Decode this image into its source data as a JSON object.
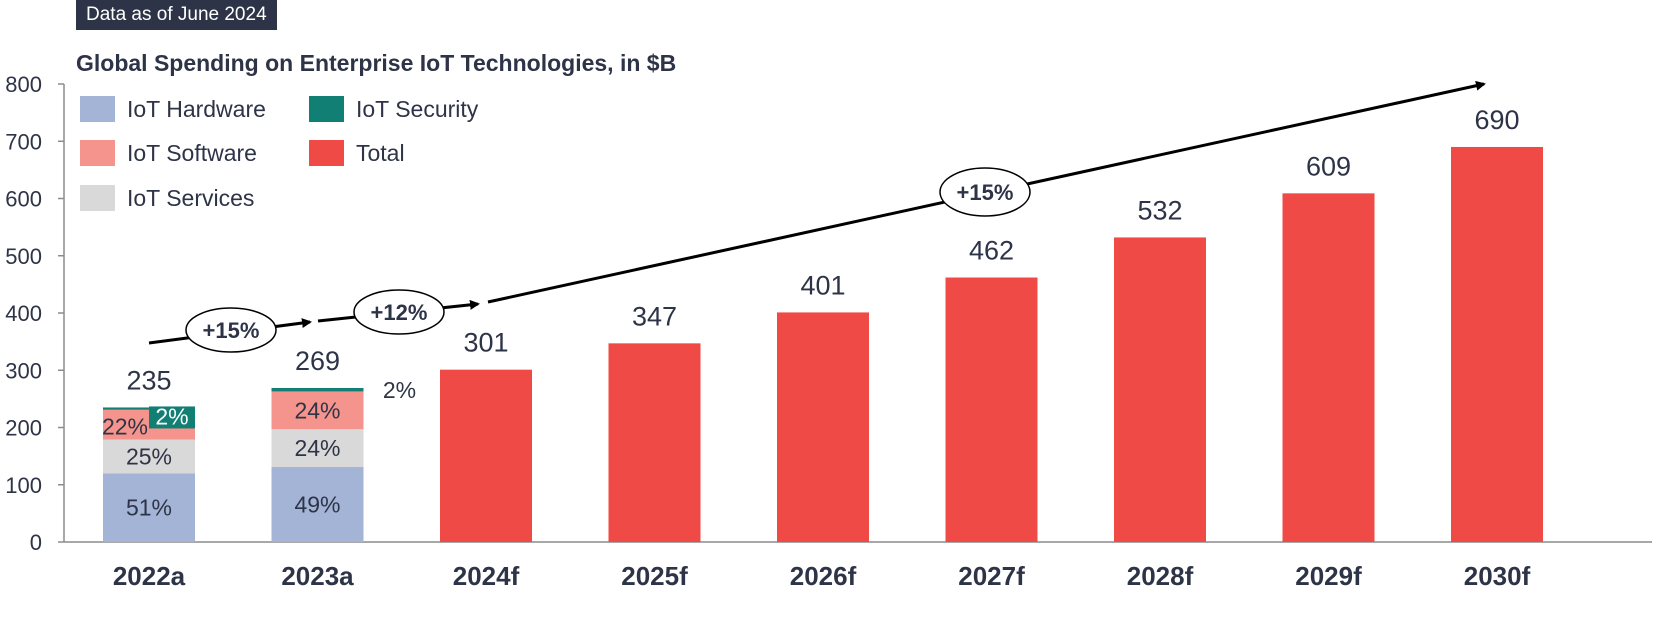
{
  "header": {
    "badge": "Data as of June 2024",
    "title": "Global Spending on Enterprise IoT Technologies, in $B"
  },
  "colors": {
    "hardware": "#a3b4d6",
    "software": "#f4948c",
    "services": "#d9d9d9",
    "security": "#117f74",
    "total": "#ef4a46",
    "text": "#2e3447",
    "badge_bg": "#2e3447"
  },
  "chart_data": {
    "type": "bar",
    "title": "Global Spending on Enterprise IoT Technologies, in $B",
    "ylim": [
      0,
      800
    ],
    "yticks": [
      "0",
      "100",
      "200",
      "300",
      "400",
      "500",
      "600",
      "700",
      "800"
    ],
    "categories": [
      "2022a",
      "2023a",
      "2024f",
      "2025f",
      "2026f",
      "2027f",
      "2028f",
      "2029f",
      "2030f"
    ],
    "legend": [
      {
        "key": "hardware",
        "label": "IoT Hardware"
      },
      {
        "key": "security",
        "label": "IoT Security"
      },
      {
        "key": "software",
        "label": "IoT Software"
      },
      {
        "key": "total",
        "label": "Total"
      },
      {
        "key": "services",
        "label": "IoT Services"
      }
    ],
    "stacked": [
      {
        "category": "2022a",
        "total": 235,
        "total_label": "235",
        "segments": [
          {
            "key": "hardware",
            "value": 120,
            "label": "51%"
          },
          {
            "key": "services",
            "value": 59,
            "label": "25%"
          },
          {
            "key": "software",
            "value": 52,
            "label": "22%"
          },
          {
            "key": "security",
            "value": 4,
            "label": "2%"
          }
        ]
      },
      {
        "category": "2023a",
        "total": 269,
        "total_label": "269",
        "segments": [
          {
            "key": "hardware",
            "value": 131,
            "label": "49%"
          },
          {
            "key": "services",
            "value": 66,
            "label": "24%"
          },
          {
            "key": "software",
            "value": 66,
            "label": "24%"
          },
          {
            "key": "security",
            "value": 6,
            "label": "2%"
          }
        ]
      }
    ],
    "totals": [
      {
        "category": "2024f",
        "value": 301,
        "label": "301"
      },
      {
        "category": "2025f",
        "value": 347,
        "label": "347"
      },
      {
        "category": "2026f",
        "value": 401,
        "label": "401"
      },
      {
        "category": "2027f",
        "value": 462,
        "label": "462"
      },
      {
        "category": "2028f",
        "value": 532,
        "label": "532"
      },
      {
        "category": "2029f",
        "value": 609,
        "label": "609"
      },
      {
        "category": "2030f",
        "value": 690,
        "label": "690"
      }
    ],
    "growth_annotations": [
      "+15%",
      "+12%",
      "+15%"
    ]
  }
}
